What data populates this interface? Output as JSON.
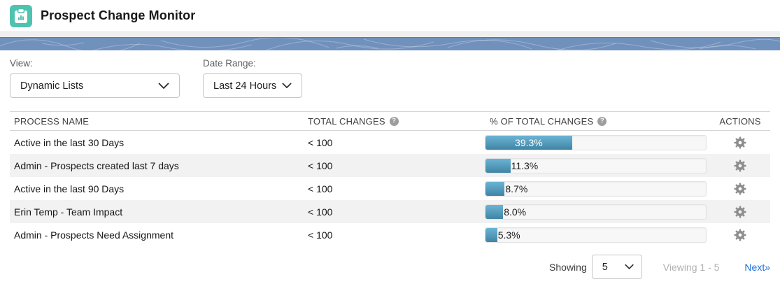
{
  "header": {
    "title": "Prospect Change Monitor",
    "icon": "clipboard-chart-icon"
  },
  "filters": {
    "view": {
      "label": "View:",
      "value": "Dynamic Lists"
    },
    "date_range": {
      "label": "Date Range:",
      "value": "Last 24 Hours"
    }
  },
  "table": {
    "columns": {
      "process_name": "PROCESS NAME",
      "total_changes": "TOTAL CHANGES",
      "pct_of_total": "% OF TOTAL CHANGES",
      "actions": "ACTIONS"
    },
    "help_icon_glyph": "?",
    "rows": [
      {
        "name": "Active in the last 30 Days",
        "total": "< 100",
        "pct": 39.3,
        "pct_label": "39.3%"
      },
      {
        "name": "Admin - Prospects created last 7 days",
        "total": "< 100",
        "pct": 11.3,
        "pct_label": "11.3%"
      },
      {
        "name": "Active in the last 90 Days",
        "total": "< 100",
        "pct": 8.7,
        "pct_label": "8.7%"
      },
      {
        "name": "Erin Temp - Team Impact",
        "total": "< 100",
        "pct": 8.0,
        "pct_label": "8.0%"
      },
      {
        "name": "Admin - Prospects Need Assignment",
        "total": "< 100",
        "pct": 5.3,
        "pct_label": "5.3%"
      }
    ]
  },
  "footer": {
    "showing_label": "Showing",
    "page_size": "5",
    "viewing_label": "Viewing 1 - 5",
    "next_label": "Next»"
  },
  "colors": {
    "app_icon_teal": "#4ec3b0",
    "banner_blue": "#7191bd",
    "bar_fill_top": "#6ab4d5",
    "bar_fill_bottom": "#4184a4",
    "row_stripe": "#f2f2f2",
    "link_blue": "#1b6edc",
    "gear_gray": "#8d8d8d"
  }
}
